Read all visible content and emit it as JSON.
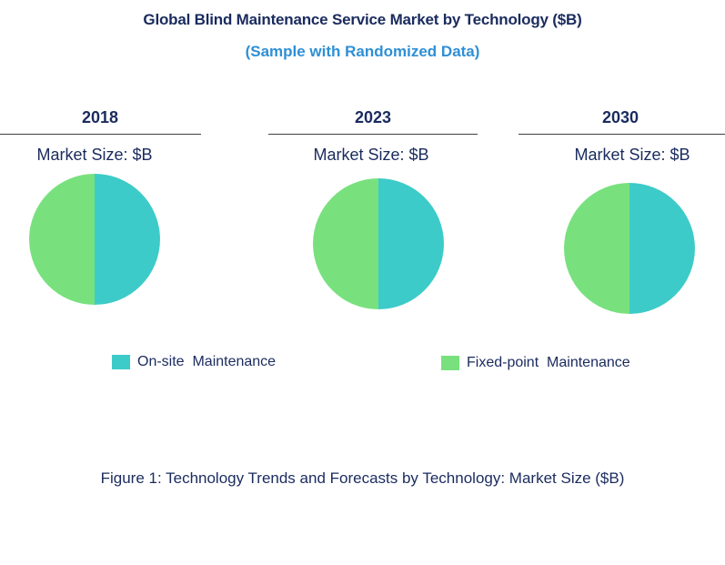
{
  "chart_data": {
    "type": "pie",
    "title": "Global Blind Maintenance Service Market by Technology ($B)",
    "subtitle": "(Sample with Randomized Data)",
    "legend": [
      "On-site  Maintenance",
      "Fixed-point  Maintenance"
    ],
    "colors": [
      "#3ccbc8",
      "#78e17e"
    ],
    "charts": [
      {
        "year": "2018",
        "label": "Market Size: $B",
        "values": [
          50,
          50
        ]
      },
      {
        "year": "2023",
        "label": "Market Size: $B",
        "values": [
          50,
          50
        ]
      },
      {
        "year": "2030",
        "label": "Market Size: $B",
        "values": [
          50,
          50
        ]
      }
    ],
    "caption": "Figure 1: Technology Trends and Forecasts by Technology: Market Size ($B)"
  }
}
